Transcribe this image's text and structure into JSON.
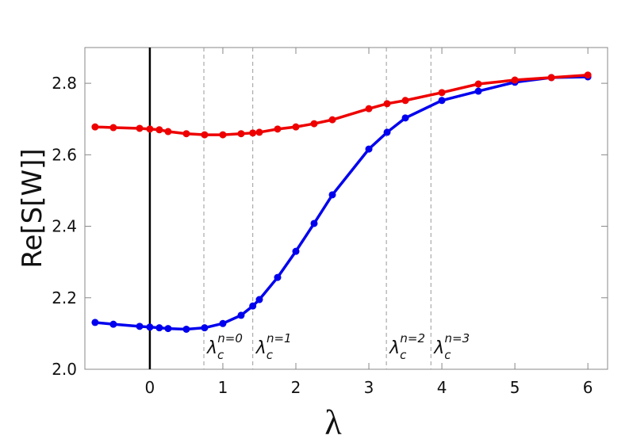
{
  "chart_data": {
    "type": "line",
    "x_label": "λ",
    "y_label": "Re[S[W]]",
    "xlim": [
      -0.89,
      6.27
    ],
    "ylim": [
      2.0,
      2.9
    ],
    "xticks": [
      0,
      1,
      2,
      3,
      4,
      5,
      6
    ],
    "yticks": [
      {
        "value": 2.0,
        "label": "2.0"
      },
      2.2,
      2.4,
      2.6,
      2.8
    ],
    "vline": 0,
    "annotations": [
      {
        "x": 0.74,
        "base": "λ",
        "sub": "c",
        "sup": "n=0"
      },
      {
        "x": 1.41,
        "base": "λ",
        "sub": "c",
        "sup": "n=1"
      },
      {
        "x": 3.24,
        "base": "λ",
        "sub": "c",
        "sup": "n=2"
      },
      {
        "x": 3.85,
        "base": "λ",
        "sub": "c",
        "sup": "n=3"
      }
    ],
    "series": [
      {
        "color": "#0000ee",
        "x": [
          -0.75,
          -0.5,
          -0.14,
          0,
          0.13,
          0.25,
          0.5,
          0.75,
          1,
          1.25,
          1.41,
          1.5,
          1.75,
          2,
          2.25,
          2.5,
          3,
          3.25,
          3.5,
          4,
          4.5,
          5,
          5.5,
          6
        ],
        "values": [
          2.131,
          2.126,
          2.12,
          2.118,
          2.116,
          2.114,
          2.112,
          2.116,
          2.128,
          2.151,
          2.177,
          2.195,
          2.257,
          2.33,
          2.408,
          2.488,
          2.616,
          2.663,
          2.703,
          2.752,
          2.778,
          2.803,
          2.816,
          2.818
        ]
      },
      {
        "color": "#ee0000",
        "x": [
          -0.75,
          -0.5,
          -0.14,
          0,
          0.13,
          0.25,
          0.5,
          0.75,
          1,
          1.25,
          1.41,
          1.5,
          1.75,
          2,
          2.25,
          2.5,
          3,
          3.25,
          3.5,
          4,
          4.5,
          5,
          5.5,
          6
        ],
        "values": [
          2.678,
          2.676,
          2.674,
          2.672,
          2.67,
          2.665,
          2.659,
          2.656,
          2.656,
          2.659,
          2.661,
          2.663,
          2.672,
          2.678,
          2.687,
          2.698,
          2.729,
          2.743,
          2.752,
          2.774,
          2.798,
          2.809,
          2.816,
          2.823
        ]
      }
    ]
  }
}
